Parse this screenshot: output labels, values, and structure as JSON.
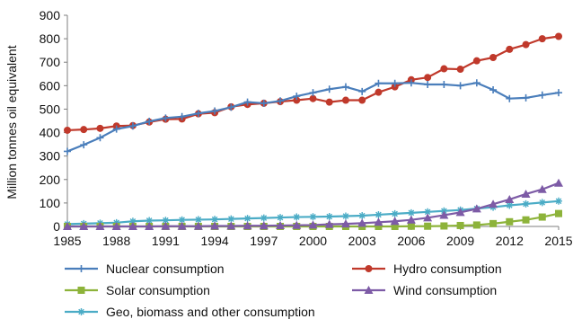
{
  "chart_data": {
    "type": "line",
    "title": "",
    "xlabel": "",
    "ylabel": "Million tonnes oil equivalent",
    "xlim": [
      1985,
      2015
    ],
    "ylim": [
      0,
      900
    ],
    "yticks": [
      0,
      100,
      200,
      300,
      400,
      500,
      600,
      700,
      800,
      900
    ],
    "xticks": [
      1985,
      1988,
      1991,
      1994,
      1997,
      2000,
      2003,
      2006,
      2009,
      2012,
      2015
    ],
    "grid": false,
    "legend_position": "bottom",
    "x": [
      1985,
      1986,
      1987,
      1988,
      1989,
      1990,
      1991,
      1992,
      1993,
      1994,
      1995,
      1996,
      1997,
      1998,
      1999,
      2000,
      2001,
      2002,
      2003,
      2004,
      2005,
      2006,
      2007,
      2008,
      2009,
      2010,
      2011,
      2012,
      2013,
      2014,
      2015
    ],
    "series": [
      {
        "name": "Nuclear consumption",
        "color": "#4a7ebb",
        "marker": "plus",
        "values": [
          320,
          348,
          378,
          415,
          428,
          448,
          462,
          468,
          482,
          492,
          508,
          530,
          525,
          535,
          555,
          570,
          585,
          595,
          575,
          610,
          610,
          612,
          605,
          605,
          600,
          612,
          582,
          545,
          548,
          560,
          570
        ]
      },
      {
        "name": "Hydro consumption",
        "color": "#c0392b",
        "marker": "circle",
        "values": [
          410,
          413,
          418,
          428,
          430,
          445,
          457,
          458,
          480,
          485,
          510,
          520,
          525,
          532,
          538,
          545,
          530,
          538,
          538,
          572,
          595,
          625,
          635,
          672,
          670,
          706,
          720,
          755,
          775,
          800,
          810
        ]
      },
      {
        "name": "Solar consumption",
        "color": "#8db33a",
        "marker": "square",
        "values": [
          0,
          0,
          0,
          0,
          0,
          0,
          0,
          0,
          0,
          0,
          0,
          0,
          0,
          0,
          0,
          0,
          0,
          0,
          0,
          0,
          0,
          1,
          1,
          2,
          4,
          6,
          12,
          20,
          28,
          40,
          55
        ]
      },
      {
        "name": "Wind consumption",
        "color": "#7d5ba6",
        "marker": "triangle",
        "values": [
          0,
          0,
          0,
          0,
          0,
          0,
          1,
          1,
          1,
          2,
          2,
          3,
          3,
          4,
          5,
          6,
          9,
          11,
          14,
          18,
          22,
          28,
          37,
          48,
          60,
          75,
          95,
          115,
          138,
          158,
          185
        ]
      },
      {
        "name": "Geo, biomass and other consumption",
        "color": "#4bacc6",
        "marker": "star",
        "values": [
          10,
          12,
          14,
          16,
          22,
          25,
          26,
          28,
          29,
          30,
          32,
          34,
          36,
          38,
          40,
          41,
          42,
          44,
          46,
          50,
          54,
          58,
          62,
          66,
          70,
          76,
          82,
          90,
          96,
          102,
          108
        ]
      }
    ]
  }
}
